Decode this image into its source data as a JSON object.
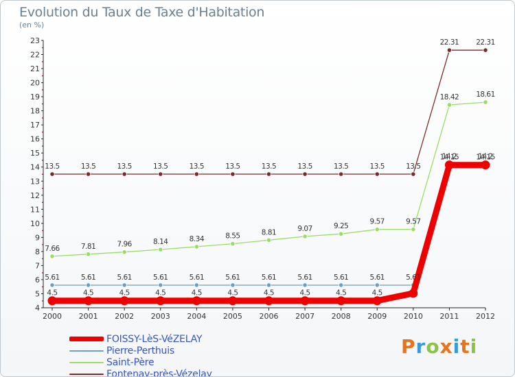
{
  "header": {
    "title": "Evolution du Taux de Taxe d'Habitation",
    "unit": "(en %)"
  },
  "brand": {
    "letters": [
      {
        "ch": "P",
        "color": "#e8731c"
      },
      {
        "ch": "r",
        "color": "#3a9ad9"
      },
      {
        "ch": "o",
        "color": "#8bc34a"
      },
      {
        "ch": "x",
        "color": "#e8731c"
      },
      {
        "ch": "i",
        "color": "#3a9ad9"
      },
      {
        "ch": "t",
        "color": "#e8731c"
      },
      {
        "ch": "i",
        "color": "#8bc34a"
      }
    ]
  },
  "chart_data": {
    "type": "line",
    "title": "Evolution du Taux de Taxe d'Habitation",
    "ylabel": "(en %)",
    "xlabel": "",
    "x": [
      "2000",
      "2001",
      "2002",
      "2003",
      "2004",
      "2005",
      "2006",
      "2007",
      "2008",
      "2009",
      "2010",
      "2011",
      "2012"
    ],
    "ylim": [
      4,
      23
    ],
    "yticks": [
      4,
      5,
      6,
      7,
      8,
      9,
      10,
      11,
      12,
      13,
      14,
      15,
      16,
      17,
      18,
      19,
      20,
      21,
      22,
      23
    ],
    "grid": false,
    "legend_position": "bottom-left",
    "series": [
      {
        "name": "FOISSY-LèS-VéZELAY",
        "color": "#ee0000",
        "values": [
          4.5,
          4.5,
          4.5,
          4.5,
          4.5,
          4.5,
          4.5,
          4.5,
          4.5,
          4.5,
          5.03,
          14.15,
          14.15
        ],
        "labels": [
          "4.5",
          "4.5",
          "4.5",
          "4.5",
          "4.5",
          "4.5",
          "4.5",
          "4.5",
          "4.5",
          "4.5",
          "",
          "14.15",
          "14.15"
        ]
      },
      {
        "name": "Pierre-Perthuis",
        "color": "#6a9fc8",
        "values": [
          5.61,
          5.61,
          5.61,
          5.61,
          5.61,
          5.61,
          5.61,
          5.61,
          5.61,
          5.61,
          5.61,
          14.2,
          14.2
        ],
        "labels": [
          "5.61",
          "5.61",
          "5.61",
          "5.61",
          "5.61",
          "5.61",
          "5.61",
          "5.61",
          "5.61",
          "5.61",
          "5.61",
          "14.2",
          "14.2"
        ]
      },
      {
        "name": "Saint-Père",
        "color": "#99dd66",
        "values": [
          7.66,
          7.81,
          7.96,
          8.14,
          8.34,
          8.55,
          8.81,
          9.07,
          9.25,
          9.57,
          9.57,
          18.42,
          18.61
        ],
        "labels": [
          "7.66",
          "7.81",
          "7.96",
          "8.14",
          "8.34",
          "8.55",
          "8.81",
          "9.07",
          "9.25",
          "9.57",
          "9.57",
          "18.42",
          "18.61"
        ]
      },
      {
        "name": "Fontenay-près-Vézelay",
        "color": "#7a2a2a",
        "values": [
          13.5,
          13.5,
          13.5,
          13.5,
          13.5,
          13.5,
          13.5,
          13.5,
          13.5,
          13.5,
          13.5,
          22.31,
          22.31
        ],
        "labels": [
          "13.5",
          "13.5",
          "13.5",
          "13.5",
          "13.5",
          "13.5",
          "13.5",
          "13.5",
          "13.5",
          "13.5",
          "13.5",
          "22.31",
          "22.31"
        ]
      }
    ]
  }
}
